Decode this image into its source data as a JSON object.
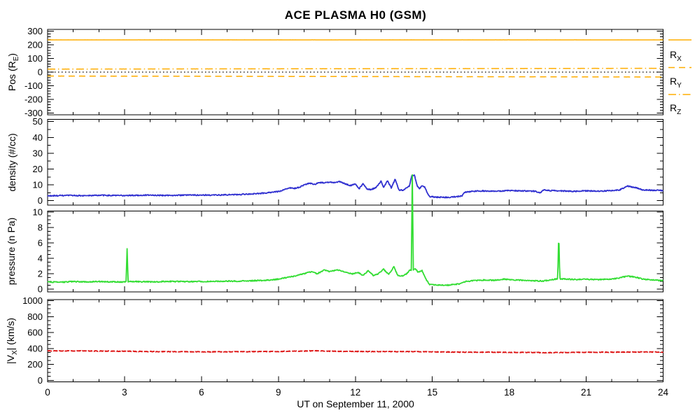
{
  "chart_data": {
    "type": "line",
    "title": "ACE PLASMA H0 (GSM)",
    "xlabel": "UT on September 11, 2000",
    "x_range": [
      0,
      24
    ],
    "x_major_ticks": [
      0,
      3,
      6,
      9,
      12,
      15,
      18,
      21,
      24
    ],
    "x_minor_step": 1,
    "grid": false,
    "legend_position": "right-of-first-panel",
    "background": "#FFFFFF",
    "frame_color": "#000000",
    "panels": [
      {
        "id": "position",
        "ylabel_pre": "Pos (R",
        "ylabel_sub": "E",
        "ylabel_post": ")",
        "yrange": [
          -300,
          300
        ],
        "display_yrange": [
          -314,
          314
        ],
        "ytick_values": [
          300,
          200,
          100,
          0,
          -100,
          -200,
          -300
        ],
        "y_minor_step": 20,
        "series": [
          {
            "name": "zero-line",
            "color": "#000000",
            "style": "dot",
            "width": 1.2,
            "noise": 0,
            "points": [
              [
                0,
                0
              ],
              [
                24,
                0
              ]
            ]
          },
          {
            "name": "RX",
            "color": "#FFAD00",
            "style": "solid",
            "width": 1.5,
            "noise": 0.15,
            "points": [
              [
                0,
                237
              ],
              [
                24,
                237
              ]
            ]
          },
          {
            "name": "RY",
            "color": "#FFAD00",
            "style": "dash",
            "width": 1.5,
            "noise": 0.3,
            "points": [
              [
                0,
                -29
              ],
              [
                24,
                -36
              ]
            ]
          },
          {
            "name": "RZ",
            "color": "#FFAD00",
            "style": "dashdot",
            "width": 1.5,
            "noise": 0.3,
            "points": [
              [
                0,
                22
              ],
              [
                24,
                28
              ]
            ]
          }
        ],
        "legend": [
          {
            "label_pre": "R",
            "label_sub": "X",
            "style": "solid",
            "color": "#FFAD00"
          },
          {
            "label_pre": "R",
            "label_sub": "Y",
            "style": "dash",
            "color": "#FFAD00"
          },
          {
            "label_pre": "R",
            "label_sub": "Z",
            "style": "dashdot",
            "color": "#FFAD00"
          }
        ]
      },
      {
        "id": "density",
        "ylabel_pre": "density (#/cc)",
        "ylabel_sub": "",
        "ylabel_post": "",
        "yrange": [
          0,
          50
        ],
        "display_yrange": [
          -2.8,
          51.4
        ],
        "ytick_values": [
          50,
          40,
          30,
          20,
          10,
          0
        ],
        "y_minor_step": 5,
        "series": [
          {
            "name": "proton-density",
            "color": "#3030D0",
            "style": "solid",
            "width": 1.8,
            "noise": 0.35,
            "points": [
              [
                0,
                3.0
              ],
              [
                0.5,
                3.2
              ],
              [
                1,
                3.3
              ],
              [
                1.5,
                3.1
              ],
              [
                2,
                3.4
              ],
              [
                2.5,
                3.3
              ],
              [
                3,
                3.2
              ],
              [
                3.5,
                3.4
              ],
              [
                4,
                3.5
              ],
              [
                4.5,
                3.3
              ],
              [
                5,
                3.4
              ],
              [
                5.5,
                3.5
              ],
              [
                6,
                3.6
              ],
              [
                6.5,
                3.5
              ],
              [
                7,
                3.7
              ],
              [
                7.5,
                3.9
              ],
              [
                8,
                4.3
              ],
              [
                8.5,
                4.8
              ],
              [
                9,
                5.8
              ],
              [
                9.2,
                6.8
              ],
              [
                9.4,
                8.2
              ],
              [
                9.6,
                7.6
              ],
              [
                9.8,
                8.4
              ],
              [
                10,
                9.8
              ],
              [
                10.2,
                11.2
              ],
              [
                10.4,
                10.2
              ],
              [
                10.6,
                11.6
              ],
              [
                10.8,
                11.2
              ],
              [
                11,
                11.8
              ],
              [
                11.2,
                11.4
              ],
              [
                11.4,
                12.0
              ],
              [
                11.6,
                10.6
              ],
              [
                11.8,
                9.6
              ],
              [
                12,
                10.4
              ],
              [
                12.15,
                7.6
              ],
              [
                12.3,
                10.8
              ],
              [
                12.45,
                7.2
              ],
              [
                12.6,
                7.0
              ],
              [
                12.8,
                8.2
              ],
              [
                13,
                12.4
              ],
              [
                13.1,
                8.4
              ],
              [
                13.25,
                12.8
              ],
              [
                13.4,
                8.0
              ],
              [
                13.55,
                13.6
              ],
              [
                13.7,
                6.8
              ],
              [
                13.85,
                6.6
              ],
              [
                14,
                8.2
              ],
              [
                14.1,
                9.0
              ],
              [
                14.2,
                15.6
              ],
              [
                14.3,
                16.2
              ],
              [
                14.4,
                9.8
              ],
              [
                14.5,
                7.4
              ],
              [
                14.6,
                9.6
              ],
              [
                14.7,
                8.6
              ],
              [
                14.8,
                5.0
              ],
              [
                14.9,
                2.6
              ],
              [
                15.2,
                2.2
              ],
              [
                15.5,
                2.1
              ],
              [
                15.8,
                2.3
              ],
              [
                16,
                2.6
              ],
              [
                16.15,
                3.0
              ],
              [
                16.25,
                5.2
              ],
              [
                16.5,
                5.8
              ],
              [
                17,
                6.2
              ],
              [
                17.5,
                6.0
              ],
              [
                18,
                6.4
              ],
              [
                18.5,
                6.2
              ],
              [
                19,
                6.0
              ],
              [
                19.2,
                5.0
              ],
              [
                19.35,
                6.8
              ],
              [
                19.6,
                6.4
              ],
              [
                20,
                6.2
              ],
              [
                20.5,
                5.8
              ],
              [
                21,
                6.2
              ],
              [
                21.5,
                6.0
              ],
              [
                22,
                6.4
              ],
              [
                22.3,
                6.8
              ],
              [
                22.6,
                9.2
              ],
              [
                22.9,
                8.4
              ],
              [
                23.2,
                6.8
              ],
              [
                23.6,
                6.6
              ],
              [
                24,
                6.4
              ]
            ]
          }
        ]
      },
      {
        "id": "pressure",
        "ylabel_pre": "pressure (n Pa)",
        "ylabel_sub": "",
        "ylabel_post": "",
        "yrange": [
          0,
          10
        ],
        "display_yrange": [
          -0.35,
          10.15
        ],
        "ytick_values": [
          10,
          8,
          6,
          4,
          2,
          0
        ],
        "y_minor_step": 0.5,
        "series": [
          {
            "name": "flow-pressure",
            "color": "#33DD33",
            "style": "solid",
            "width": 1.8,
            "noise": 0.07,
            "points": [
              [
                0,
                0.95
              ],
              [
                0.5,
                0.9
              ],
              [
                1,
                1.0
              ],
              [
                1.5,
                0.95
              ],
              [
                2,
                1.0
              ],
              [
                2.5,
                0.95
              ],
              [
                3,
                0.95
              ],
              [
                3.06,
                1.0
              ],
              [
                3.1,
                5.2
              ],
              [
                3.14,
                1.0
              ],
              [
                3.5,
                1.0
              ],
              [
                4,
                0.95
              ],
              [
                4.5,
                1.0
              ],
              [
                5,
                1.0
              ],
              [
                5.5,
                1.0
              ],
              [
                6,
                1.0
              ],
              [
                6.5,
                1.0
              ],
              [
                7,
                1.05
              ],
              [
                7.5,
                1.05
              ],
              [
                8,
                1.1
              ],
              [
                8.5,
                1.15
              ],
              [
                9,
                1.3
              ],
              [
                9.3,
                1.5
              ],
              [
                9.6,
                1.7
              ],
              [
                10,
                2.0
              ],
              [
                10.3,
                2.3
              ],
              [
                10.5,
                2.0
              ],
              [
                10.8,
                2.5
              ],
              [
                11,
                2.3
              ],
              [
                11.3,
                2.5
              ],
              [
                11.6,
                2.2
              ],
              [
                11.9,
                2.0
              ],
              [
                12.1,
                2.2
              ],
              [
                12.3,
                1.8
              ],
              [
                12.5,
                2.4
              ],
              [
                12.7,
                1.8
              ],
              [
                12.9,
                2.0
              ],
              [
                13.1,
                2.6
              ],
              [
                13.3,
                1.9
              ],
              [
                13.5,
                2.9
              ],
              [
                13.65,
                1.8
              ],
              [
                13.8,
                1.7
              ],
              [
                14,
                2.0
              ],
              [
                14.1,
                2.4
              ],
              [
                14.18,
                2.5
              ],
              [
                14.22,
                14.8
              ],
              [
                14.26,
                2.5
              ],
              [
                14.35,
                2.6
              ],
              [
                14.45,
                2.2
              ],
              [
                14.6,
                2.4
              ],
              [
                14.75,
                1.3
              ],
              [
                14.9,
                0.6
              ],
              [
                15.2,
                0.55
              ],
              [
                15.5,
                0.5
              ],
              [
                15.8,
                0.6
              ],
              [
                16.1,
                0.7
              ],
              [
                16.3,
                1.0
              ],
              [
                16.6,
                1.1
              ],
              [
                17,
                1.2
              ],
              [
                17.4,
                1.15
              ],
              [
                17.8,
                1.3
              ],
              [
                18.2,
                1.2
              ],
              [
                18.6,
                1.15
              ],
              [
                19,
                1.1
              ],
              [
                19.3,
                1.05
              ],
              [
                19.6,
                1.2
              ],
              [
                19.89,
                1.35
              ],
              [
                19.93,
                7.5
              ],
              [
                19.97,
                1.35
              ],
              [
                20.3,
                1.3
              ],
              [
                20.7,
                1.25
              ],
              [
                21,
                1.3
              ],
              [
                21.4,
                1.25
              ],
              [
                21.8,
                1.3
              ],
              [
                22.2,
                1.4
              ],
              [
                22.6,
                1.7
              ],
              [
                22.9,
                1.6
              ],
              [
                23.2,
                1.3
              ],
              [
                23.6,
                1.2
              ],
              [
                24,
                1.1
              ]
            ]
          }
        ]
      },
      {
        "id": "velocity",
        "ylabel_pre": "|V",
        "ylabel_sub": "X",
        "ylabel_post": "| (km/s)",
        "yrange": [
          0,
          1000
        ],
        "display_yrange": [
          -19,
          1015
        ],
        "ytick_values": [
          1000,
          800,
          600,
          400,
          200,
          0
        ],
        "y_minor_step": 50,
        "series": [
          {
            "name": "vx-speed",
            "color": "#DD1111",
            "style": "dashdata",
            "width": 1.8,
            "noise": 4,
            "points": [
              [
                0,
                372
              ],
              [
                1,
                370
              ],
              [
                2,
                368
              ],
              [
                3,
                366
              ],
              [
                4,
                362
              ],
              [
                5,
                360
              ],
              [
                6,
                358
              ],
              [
                7,
                359
              ],
              [
                8,
                361
              ],
              [
                9,
                363
              ],
              [
                10,
                368
              ],
              [
                10.4,
                372
              ],
              [
                11,
                366
              ],
              [
                12,
                363
              ],
              [
                13,
                361
              ],
              [
                14,
                362
              ],
              [
                15,
                358
              ],
              [
                16,
                355
              ],
              [
                17,
                354
              ],
              [
                18,
                352
              ],
              [
                19,
                350
              ],
              [
                19.5,
                348
              ],
              [
                20,
                350
              ],
              [
                21,
                352
              ],
              [
                22,
                354
              ],
              [
                23,
                356
              ],
              [
                24,
                355
              ]
            ]
          }
        ]
      }
    ]
  }
}
